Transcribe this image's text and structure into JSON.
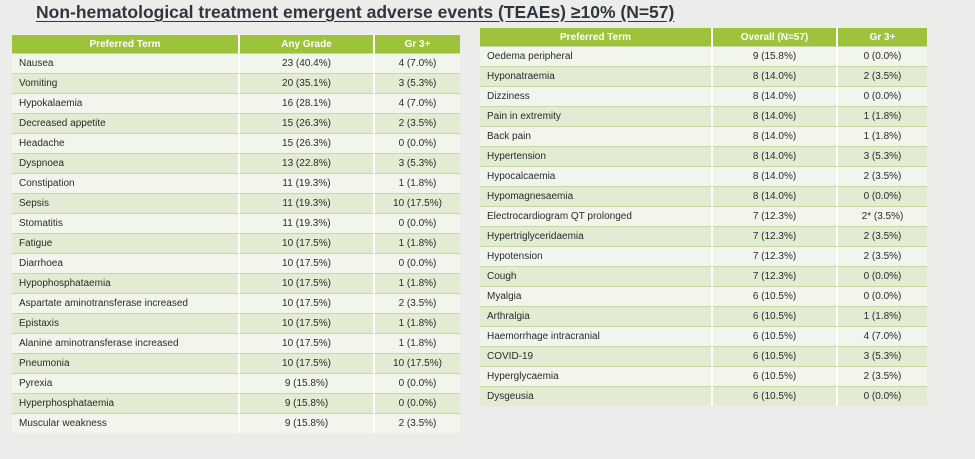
{
  "title": "Non-hematological treatment emergent adverse events (TEAEs) ≥10% (N=57)",
  "left_table": {
    "headers": [
      "Preferred Term",
      "Any Grade",
      "Gr 3+"
    ],
    "rows": [
      [
        "Nausea",
        "23 (40.4%)",
        "4 (7.0%)"
      ],
      [
        "Vomiting",
        "20 (35.1%)",
        "3 (5.3%)"
      ],
      [
        "Hypokalaemia",
        "16 (28.1%)",
        "4 (7.0%)"
      ],
      [
        "Decreased appetite",
        "15 (26.3%)",
        "2 (3.5%)"
      ],
      [
        "Headache",
        "15 (26.3%)",
        "0 (0.0%)"
      ],
      [
        "Dyspnoea",
        "13 (22.8%)",
        "3 (5.3%)"
      ],
      [
        "Constipation",
        "11 (19.3%)",
        "1 (1.8%)"
      ],
      [
        "Sepsis",
        "11 (19.3%)",
        "10 (17.5%)"
      ],
      [
        "Stomatitis",
        "11 (19.3%)",
        "0 (0.0%)"
      ],
      [
        "Fatigue",
        "10 (17.5%)",
        "1 (1.8%)"
      ],
      [
        "Diarrhoea",
        "10 (17.5%)",
        "0 (0.0%)"
      ],
      [
        "Hypophosphataemia",
        "10 (17.5%)",
        "1 (1.8%)"
      ],
      [
        "Aspartate aminotransferase increased",
        "10 (17.5%)",
        "2 (3.5%)"
      ],
      [
        "Epistaxis",
        "10 (17.5%)",
        "1 (1.8%)"
      ],
      [
        "Alanine aminotransferase increased",
        "10 (17.5%)",
        "1 (1.8%)"
      ],
      [
        "Pneumonia",
        "10 (17.5%)",
        "10 (17.5%)"
      ],
      [
        "Pyrexia",
        "9 (15.8%)",
        "0 (0.0%)"
      ],
      [
        "Hyperphosphataemia",
        "9 (15.8%)",
        "0 (0.0%)"
      ],
      [
        "Muscular weakness",
        "9 (15.8%)",
        "2 (3.5%)"
      ]
    ]
  },
  "right_table": {
    "headers": [
      "Preferred Term",
      "Overall (N=57)",
      "Gr 3+"
    ],
    "rows": [
      [
        "Oedema peripheral",
        "9 (15.8%)",
        "0 (0.0%)"
      ],
      [
        "Hyponatraemia",
        "8 (14.0%)",
        "2 (3.5%)"
      ],
      [
        "Dizziness",
        "8 (14.0%)",
        "0 (0.0%)"
      ],
      [
        "Pain in extremity",
        "8 (14.0%)",
        "1 (1.8%)"
      ],
      [
        "Back pain",
        "8 (14.0%)",
        "1 (1.8%)"
      ],
      [
        "Hypertension",
        "8 (14.0%)",
        "3 (5.3%)"
      ],
      [
        "Hypocalcaemia",
        "8 (14.0%)",
        "2 (3.5%)"
      ],
      [
        "Hypomagnesaemia",
        "8 (14.0%)",
        "0 (0.0%)"
      ],
      [
        "Electrocardiogram QT prolonged",
        "7 (12.3%)",
        "2* (3.5%)"
      ],
      [
        "Hypertriglyceridaemia",
        "7 (12.3%)",
        "2 (3.5%)"
      ],
      [
        "Hypotension",
        "7 (12.3%)",
        "2 (3.5%)"
      ],
      [
        "Cough",
        "7 (12.3%)",
        "0 (0.0%)"
      ],
      [
        "Myalgia",
        "6 (10.5%)",
        "0 (0.0%)"
      ],
      [
        "Arthralgia",
        "6 (10.5%)",
        "1 (1.8%)"
      ],
      [
        "Haemorrhage intracranial",
        "6 (10.5%)",
        "4 (7.0%)"
      ],
      [
        "COVID-19",
        "6 (10.5%)",
        "3 (5.3%)"
      ],
      [
        "Hyperglycaemia",
        "6 (10.5%)",
        "2 (3.5%)"
      ],
      [
        "Dysgeusia",
        "6 (10.5%)",
        "0 (0.0%)"
      ]
    ]
  },
  "colors": {
    "header_green": "#9dc33a",
    "row_light": "#f2f5ec",
    "row_dark": "#e3ebd2",
    "background": "#ecedeb"
  }
}
